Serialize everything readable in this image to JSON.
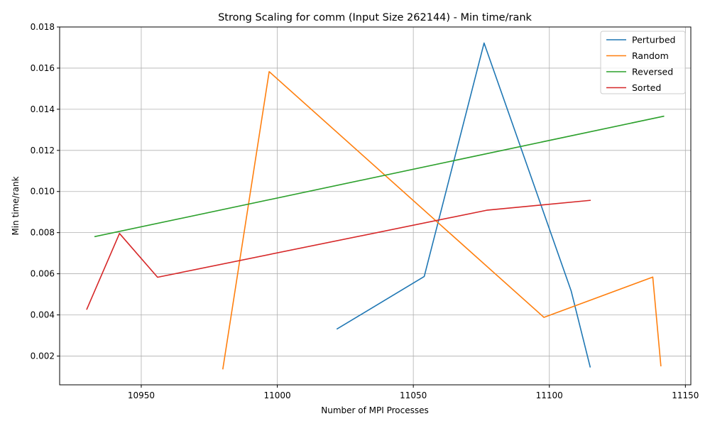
{
  "chart_data": {
    "type": "line",
    "title": "Strong Scaling for comm (Input Size 262144) - Min time/rank",
    "xlabel": "Number of MPI Processes",
    "ylabel": "Min time/rank",
    "xlim": [
      10920,
      11152
    ],
    "ylim": [
      0.0006,
      0.018
    ],
    "xticks": [
      10950,
      11000,
      11050,
      11100,
      11150
    ],
    "yticks": [
      0.002,
      0.004,
      0.006,
      0.008,
      0.01,
      0.012,
      0.014,
      0.016,
      0.018
    ],
    "xtick_labels": [
      "10950",
      "11000",
      "11050",
      "11100",
      "11150"
    ],
    "ytick_labels": [
      "0.002",
      "0.004",
      "0.006",
      "0.008",
      "0.010",
      "0.012",
      "0.014",
      "0.016",
      "0.018"
    ],
    "grid": true,
    "legend_position": "top-right",
    "series": [
      {
        "name": "Perturbed",
        "color": "#1f77b4",
        "x": [
          11022,
          11054,
          11076,
          11108,
          11115
        ],
        "y": [
          0.00332,
          0.00587,
          0.01722,
          0.00517,
          0.00147
        ]
      },
      {
        "name": "Random",
        "color": "#ff7f0e",
        "x": [
          10980,
          10997,
          11098,
          11138,
          11141
        ],
        "y": [
          0.00138,
          0.01583,
          0.00388,
          0.00584,
          0.00153
        ]
      },
      {
        "name": "Reversed",
        "color": "#2ca02c",
        "x": [
          10933,
          11142
        ],
        "y": [
          0.00781,
          0.01366
        ]
      },
      {
        "name": "Sorted",
        "color": "#d62728",
        "x": [
          10930,
          10942,
          10956,
          11077,
          11115
        ],
        "y": [
          0.00428,
          0.00796,
          0.00583,
          0.00909,
          0.00957
        ]
      }
    ]
  }
}
